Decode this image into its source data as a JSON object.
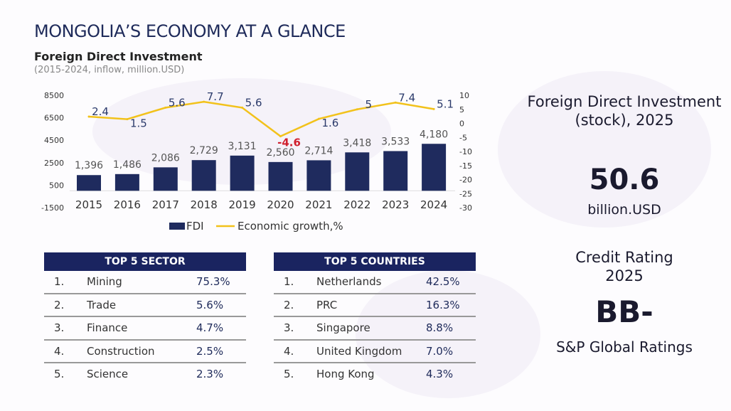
{
  "header": {
    "title": "MONGOLIA’S ECONOMY AT A GLANCE",
    "subtitle": "Foreign Direct Investment",
    "subtitle_note": "(2015-2024, inflow, million.USD)"
  },
  "chart_data": {
    "type": "bar+line",
    "categories": [
      "2015",
      "2016",
      "2017",
      "2018",
      "2019",
      "2020",
      "2021",
      "2022",
      "2023",
      "2024"
    ],
    "series": [
      {
        "name": "FDI",
        "type": "bar",
        "axis": "left",
        "values": [
          1396,
          1486,
          2086,
          2729,
          3131,
          2560,
          2714,
          3418,
          3533,
          4180
        ],
        "labels": [
          "1,396",
          "1,486",
          "2,086",
          "2,729",
          "3,131",
          "2,560",
          "2,714",
          "3,418",
          "3,533",
          "4,180"
        ],
        "color": "#1f2b5e"
      },
      {
        "name": "Economic growth,%",
        "type": "line",
        "axis": "right",
        "values": [
          2.4,
          1.5,
          5.6,
          7.7,
          5.6,
          -4.6,
          1.6,
          5,
          7.4,
          5.1
        ],
        "labels": [
          "2.4",
          "1.5",
          "5.6",
          "7.7",
          "5.6",
          "-4.6",
          "1.6",
          "5",
          "7.4",
          "5.1"
        ],
        "color": "#f2c21b",
        "negative_label_color": "#d0202e"
      }
    ],
    "left_axis": {
      "ticks": [
        "8500",
        "6500",
        "4500",
        "2500",
        "500",
        "-1500"
      ],
      "range": [
        -1500,
        8500
      ]
    },
    "right_axis": {
      "ticks": [
        "10",
        "5",
        "0",
        "-5",
        "-10",
        "-15",
        "-20",
        "-25",
        "-30"
      ],
      "range": [
        -30,
        10
      ]
    },
    "legend_position": "bottom",
    "grid": false
  },
  "sectors": {
    "header": "TOP 5 SECTOR",
    "rows": [
      {
        "rank": "1.",
        "name": "Mining",
        "pct": "75.3%"
      },
      {
        "rank": "2.",
        "name": "Trade",
        "pct": "5.6%"
      },
      {
        "rank": "3.",
        "name": "Finance",
        "pct": "4.7%"
      },
      {
        "rank": "4.",
        "name": "Construction",
        "pct": "2.5%"
      },
      {
        "rank": "5.",
        "name": "Science",
        "pct": "2.3%"
      }
    ]
  },
  "countries": {
    "header": "TOP 5 COUNTRIES",
    "rows": [
      {
        "rank": "1.",
        "name": "Netherlands",
        "pct": "42.5%"
      },
      {
        "rank": "2.",
        "name": "PRC",
        "pct": "16.3%"
      },
      {
        "rank": "3.",
        "name": "Singapore",
        "pct": "8.8%"
      },
      {
        "rank": "4.",
        "name": "United Kingdom",
        "pct": "7.0%"
      },
      {
        "rank": "5.",
        "name": "Hong Kong",
        "pct": "4.3%"
      }
    ]
  },
  "stock": {
    "label": "Foreign Direct Investment (stock), 2025",
    "value": "50.6",
    "unit": "billion.USD"
  },
  "rating": {
    "label_line1": "Credit Rating",
    "label_line2": "2025",
    "value": "BB-",
    "agency": "S&P Global Ratings"
  }
}
